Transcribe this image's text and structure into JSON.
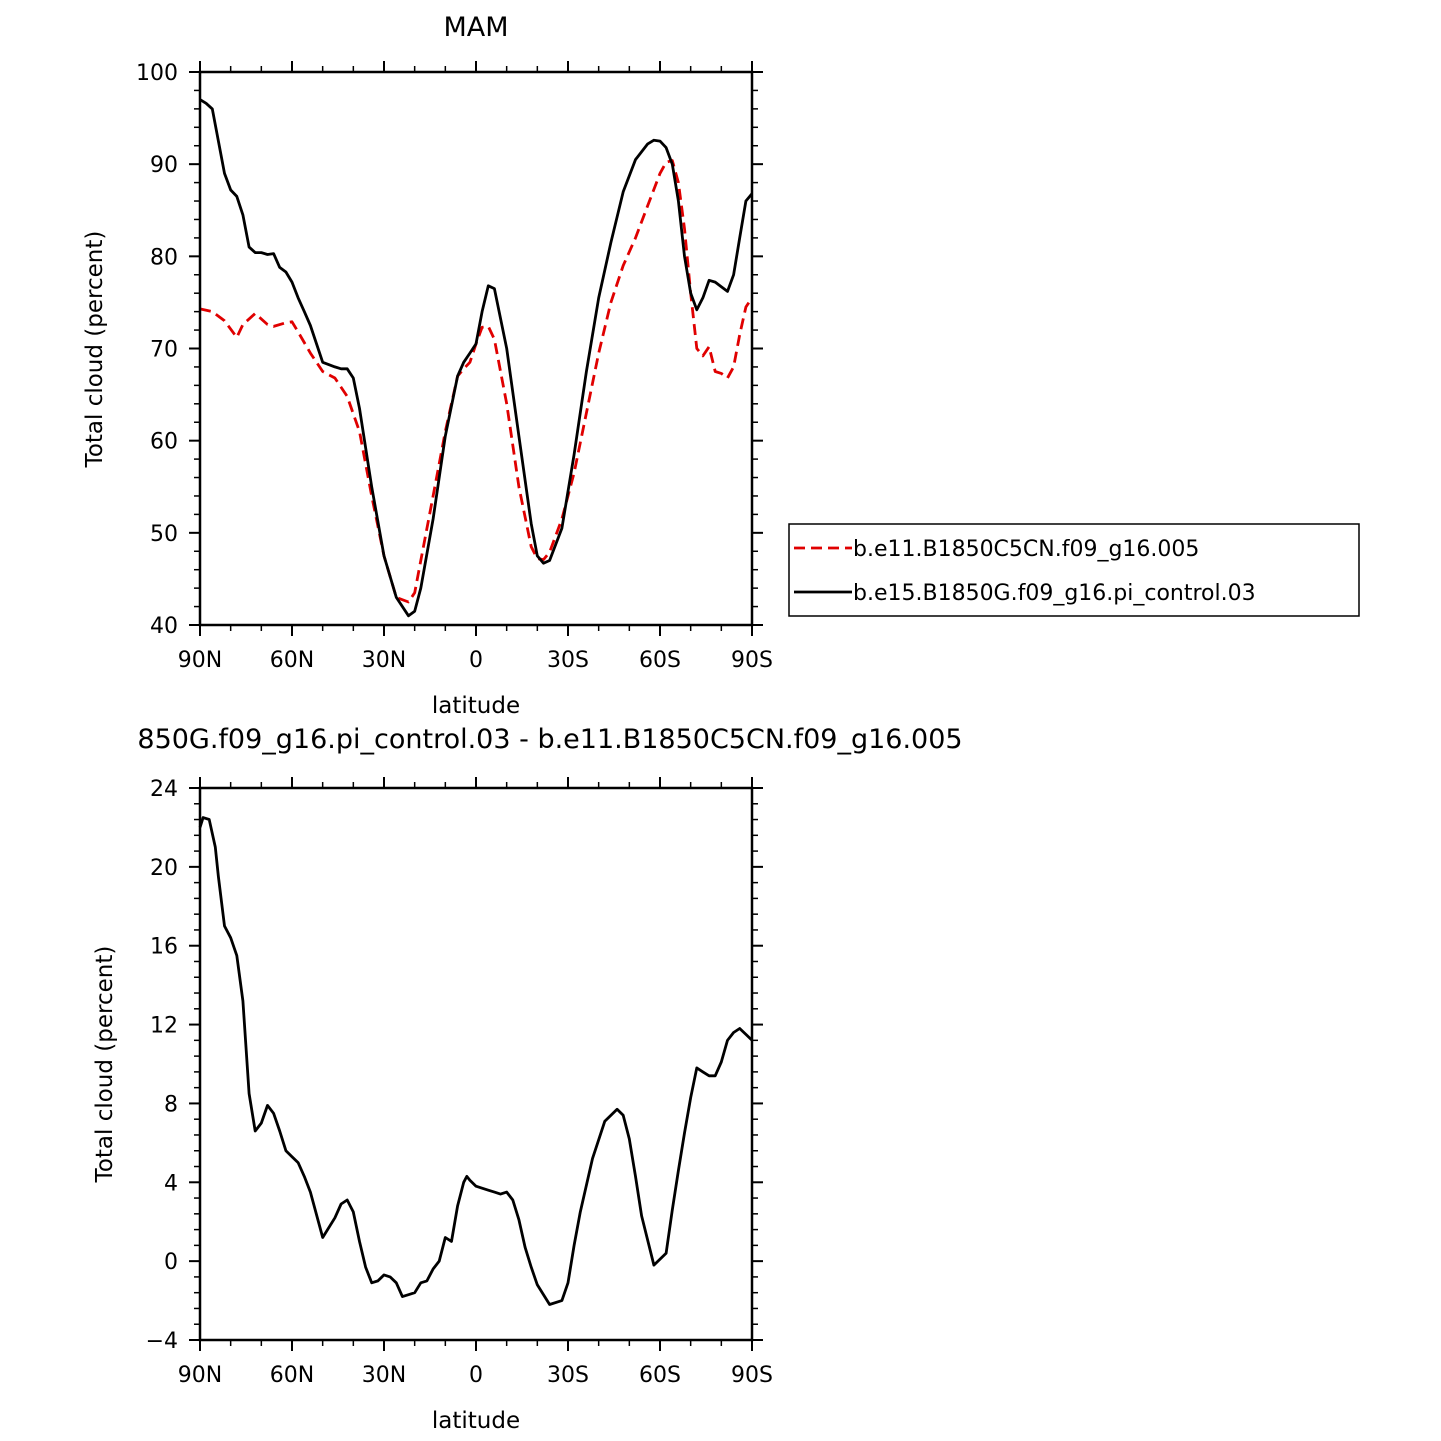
{
  "chart_data": [
    {
      "type": "line",
      "title": "MAM",
      "xlabel": "latitude",
      "ylabel": "Total cloud (percent)",
      "xlim": [
        90,
        -90
      ],
      "ylim": [
        40,
        100
      ],
      "xticks": [
        90,
        60,
        30,
        0,
        -30,
        -60,
        -90
      ],
      "xtick_labels": [
        "90N",
        "60N",
        "30N",
        "0",
        "30S",
        "60S",
        "90S"
      ],
      "yticks": [
        40,
        50,
        60,
        70,
        80,
        90,
        100
      ],
      "ytick_labels": [
        "40",
        "50",
        "60",
        "70",
        "80",
        "90",
        "100"
      ],
      "legend_position": "right",
      "series": [
        {
          "name": "b.e11.B1850C5CN.f09_g16.005",
          "color": "#e00000",
          "dash": "dashed",
          "x": [
            90,
            86,
            82,
            78,
            76,
            72,
            68,
            66,
            62,
            60,
            58,
            54,
            50,
            46,
            42,
            38,
            34,
            30,
            26,
            22,
            20,
            18,
            14,
            10,
            6,
            4,
            2,
            0,
            -2,
            -4,
            -6,
            -10,
            -14,
            -18,
            -20,
            -22,
            -24,
            -28,
            -32,
            -36,
            -40,
            -44,
            -48,
            -52,
            -56,
            -60,
            -62,
            -64,
            -66,
            -68,
            -70,
            -72,
            -74,
            -76,
            -78,
            -80,
            -82,
            -84,
            -86,
            -88,
            -90
          ],
          "y": [
            74.3,
            74,
            73,
            71.2,
            72.6,
            73.8,
            72.6,
            72.4,
            72.8,
            72.9,
            71.8,
            69.5,
            67.5,
            66.8,
            64.8,
            61,
            54,
            47.5,
            43,
            42.5,
            43.5,
            47,
            54,
            61,
            67,
            67.8,
            68.5,
            70.5,
            72.3,
            72.4,
            71,
            64,
            55,
            48.5,
            47.2,
            47.1,
            47.9,
            51.5,
            56.5,
            63,
            69.5,
            75,
            79,
            82,
            85.5,
            89,
            90.2,
            90.4,
            88,
            83,
            76,
            70,
            69.2,
            70.2,
            67.5,
            67.3,
            66.8,
            68,
            71.5,
            74.5,
            75.5
          ]
        },
        {
          "name": "b.e15.B1850G.f09_g16.pi_control.03",
          "color": "#000000",
          "dash": "solid",
          "x": [
            90,
            88,
            86,
            84,
            82,
            80,
            78,
            76,
            74,
            72,
            70,
            68,
            66,
            64,
            62,
            60,
            58,
            56,
            54,
            50,
            46,
            44,
            42,
            40,
            38,
            34,
            30,
            26,
            22,
            20,
            18,
            14,
            10,
            6,
            4,
            2,
            0,
            -2,
            -4,
            -6,
            -10,
            -14,
            -18,
            -20,
            -22,
            -24,
            -28,
            -32,
            -36,
            -40,
            -44,
            -48,
            -52,
            -56,
            -58,
            -60,
            -62,
            -64,
            -66,
            -68,
            -70,
            -72,
            -74,
            -76,
            -78,
            -80,
            -82,
            -84,
            -86,
            -88,
            -90
          ],
          "y": [
            97,
            96.6,
            96,
            92.5,
            89,
            87.2,
            86.5,
            84.5,
            81,
            80.4,
            80.4,
            80.2,
            80.3,
            78.8,
            78.3,
            77.2,
            75.5,
            74,
            72.5,
            68.5,
            68,
            67.8,
            67.8,
            66.8,
            63.5,
            55,
            47.5,
            43,
            41,
            41.5,
            44,
            51.5,
            60.5,
            67,
            68.5,
            69.5,
            70.5,
            74,
            76.8,
            76.5,
            70,
            60.5,
            51,
            47.5,
            46.7,
            47,
            50.5,
            58.5,
            67.5,
            75.5,
            81.5,
            87,
            90.5,
            92.2,
            92.6,
            92.5,
            91.8,
            90,
            86,
            80,
            76,
            74.2,
            75.5,
            77.4,
            77.2,
            76.7,
            76.2,
            78,
            82,
            86,
            86.8
          ]
        }
      ]
    },
    {
      "type": "line",
      "title": "850G.f09_g16.pi_control.03 - b.e11.B1850C5CN.f09_g16.005",
      "xlabel": "latitude",
      "ylabel": "Total cloud (percent)",
      "xlim": [
        90,
        -90
      ],
      "ylim": [
        -4,
        24
      ],
      "xticks": [
        90,
        60,
        30,
        0,
        -30,
        -60,
        -90
      ],
      "xtick_labels": [
        "90N",
        "60N",
        "30N",
        "0",
        "30S",
        "60S",
        "90S"
      ],
      "yticks": [
        -4,
        0,
        4,
        8,
        12,
        16,
        20,
        24
      ],
      "ytick_labels": [
        "−4",
        "0",
        "4",
        "8",
        "12",
        "16",
        "20",
        "24"
      ],
      "series": [
        {
          "name": "",
          "color": "#000000",
          "dash": "solid",
          "x": [
            90,
            89,
            87,
            85,
            84,
            82,
            80,
            78,
            76,
            74,
            72,
            70,
            68,
            66,
            64,
            62,
            60,
            58,
            56,
            54,
            50,
            46,
            44,
            42,
            40,
            38,
            36,
            34,
            32,
            30,
            28,
            26,
            24,
            22,
            20,
            18,
            16,
            14,
            12,
            10,
            8,
            6,
            4,
            3,
            2,
            0,
            -2,
            -4,
            -6,
            -8,
            -10,
            -12,
            -14,
            -16,
            -18,
            -20,
            -24,
            -28,
            -30,
            -32,
            -34,
            -38,
            -42,
            -46,
            -48,
            -50,
            -52,
            -54,
            -58,
            -62,
            -64,
            -66,
            -68,
            -70,
            -72,
            -74,
            -76,
            -78,
            -80,
            -82,
            -84,
            -86,
            -88,
            -90
          ],
          "y": [
            22,
            22.5,
            22.4,
            21,
            19.5,
            17,
            16.4,
            15.5,
            13.2,
            8.5,
            6.6,
            7,
            7.9,
            7.5,
            6.6,
            5.6,
            5.3,
            5,
            4.3,
            3.5,
            1.2,
            2.2,
            2.9,
            3.1,
            2.5,
            1,
            -0.3,
            -1.1,
            -1,
            -0.7,
            -0.8,
            -1.1,
            -1.8,
            -1.7,
            -1.6,
            -1.1,
            -1,
            -0.4,
            0,
            1.2,
            1,
            2.8,
            4,
            4.3,
            4.1,
            3.8,
            3.7,
            3.6,
            3.5,
            3.4,
            3.5,
            3.1,
            2.1,
            0.7,
            -0.3,
            -1.2,
            -2.2,
            -2,
            -1.1,
            0.8,
            2.5,
            5.2,
            7.1,
            7.7,
            7.4,
            6.2,
            4.3,
            2.3,
            -0.2,
            0.4,
            2.6,
            4.6,
            6.5,
            8.3,
            9.8,
            9.6,
            9.4,
            9.4,
            10.1,
            11.2,
            11.6,
            11.8,
            11.5,
            11.2
          ]
        }
      ]
    }
  ]
}
